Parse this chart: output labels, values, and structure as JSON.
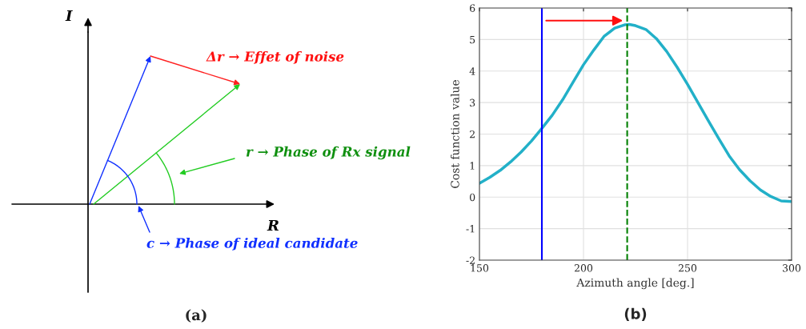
{
  "chart_data": [
    {
      "type": "other",
      "title": "(a)",
      "annotations": [
        "Δr → Effet of noise",
        "r → Phase of Rx signal",
        "c → Phase of ideal candidate"
      ]
    },
    {
      "type": "line",
      "title": "(b)",
      "xlabel": "Azimuth angle [deg.]",
      "ylabel": "Cost function value",
      "x": [
        150,
        155,
        160,
        165,
        170,
        175,
        180,
        185,
        190,
        195,
        200,
        205,
        210,
        215,
        220,
        222,
        225,
        230,
        235,
        240,
        245,
        250,
        255,
        260,
        265,
        270,
        275,
        280,
        285,
        290,
        295,
        300
      ],
      "series": [
        {
          "color": "#22b0c8",
          "values": [
            0.44,
            0.63,
            0.85,
            1.12,
            1.43,
            1.78,
            2.18,
            2.6,
            3.09,
            3.65,
            4.2,
            4.67,
            5.11,
            5.36,
            5.47,
            5.48,
            5.44,
            5.32,
            5.03,
            4.62,
            4.12,
            3.58,
            3.0,
            2.42,
            1.86,
            1.31,
            0.87,
            0.52,
            0.23,
            0.02,
            -0.12,
            -0.14
          ]
        }
      ],
      "xlim": [
        150,
        300
      ],
      "xticks": [
        150,
        200,
        250,
        300
      ],
      "ylim": [
        -2,
        6
      ],
      "yticks": [
        -2,
        -1,
        0,
        1,
        2,
        3,
        4,
        5,
        6
      ],
      "grid": true,
      "ref_lines": [
        {
          "axis": "x",
          "value": 180,
          "color": "#0000ff",
          "line_style": "solid"
        },
        {
          "axis": "x",
          "value": 221,
          "color": "#008000",
          "line_style": "dashed"
        }
      ]
    }
  ]
}
